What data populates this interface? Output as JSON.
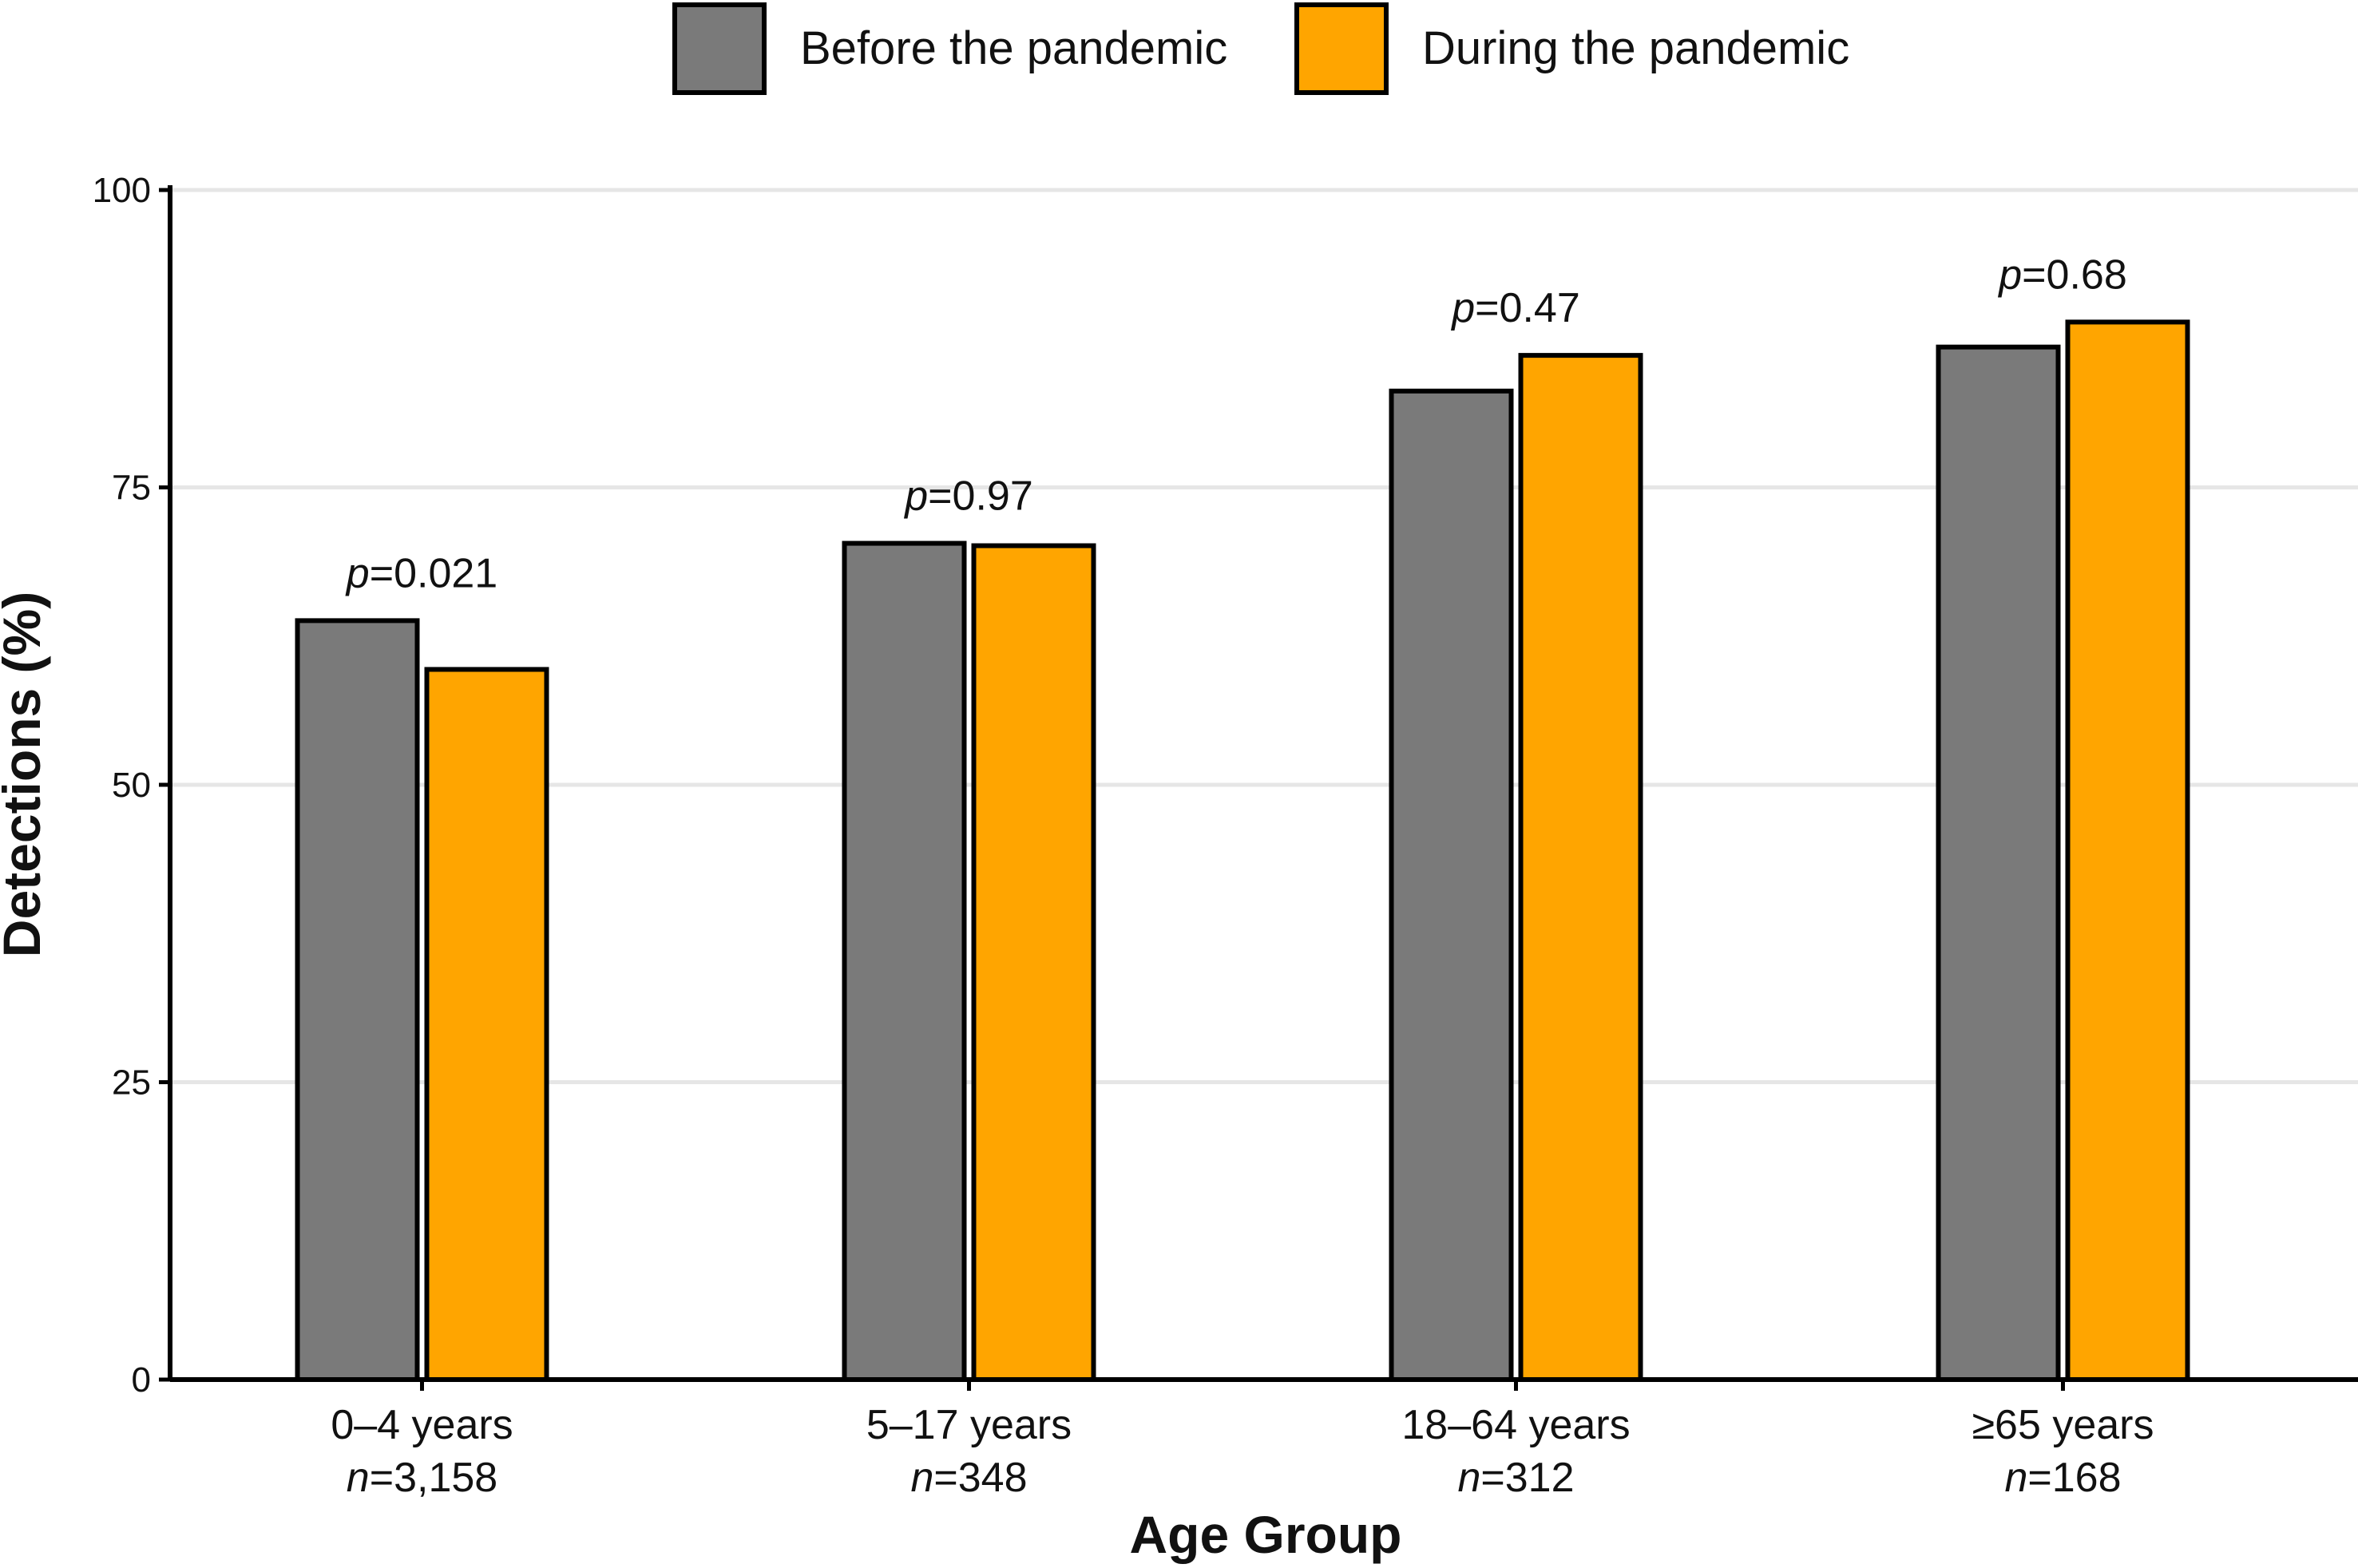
{
  "chart_data": {
    "type": "bar",
    "categories": [
      "0–4 years",
      "5–17 years",
      "18–64 years",
      "≥65 years"
    ],
    "sample_sizes": [
      "3,158",
      "348",
      "312",
      "168"
    ],
    "n_prefix": "n",
    "n_sep": "=",
    "series": [
      {
        "name": "Before the pandemic",
        "color": "#7a7a7a",
        "values": [
          63.8,
          70.3,
          83.1,
          86.8
        ]
      },
      {
        "name": "During the pandemic",
        "color": "#ffa500",
        "values": [
          59.7,
          70.1,
          86.1,
          88.9
        ]
      }
    ],
    "p_values": [
      "0.021",
      "0.97",
      "0.47",
      "0.68"
    ],
    "p_prefix": "p",
    "p_sep": "=",
    "ylim": [
      0,
      100
    ],
    "yticks": [
      0,
      25,
      50,
      75,
      100
    ],
    "xlabel": "Age Group",
    "ylabel": "Detections (%)",
    "legend_position": "top-center",
    "grid": true
  }
}
